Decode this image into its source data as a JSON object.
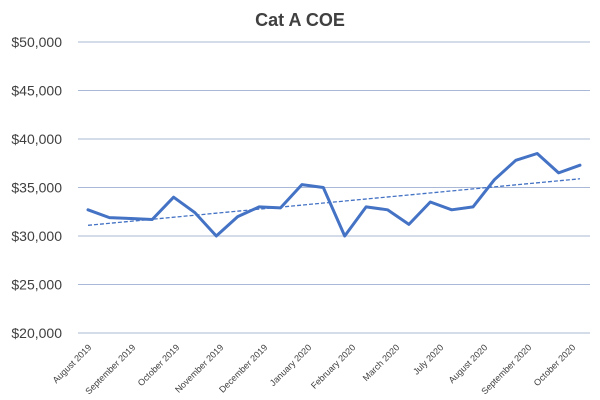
{
  "chart_data": {
    "type": "line",
    "title": "Cat A COE",
    "xlabel": "",
    "ylabel": "",
    "ylim": [
      20000,
      50000
    ],
    "y_ticks": [
      20000,
      25000,
      30000,
      35000,
      40000,
      45000,
      50000
    ],
    "y_tick_labels": [
      "$20,000",
      "$25,000",
      "$30,000",
      "$35,000",
      "$40,000",
      "$45,000",
      "$50,000"
    ],
    "x_tick_labels": [
      "August 2019",
      "September 2019",
      "October 2019",
      "November 2019",
      "December 2019",
      "January 2020",
      "February 2020",
      "March 2020",
      "July 2020",
      "August 2020",
      "September 2020",
      "October 2020"
    ],
    "grid": true,
    "legend": false,
    "series": [
      {
        "color": "#4472c4",
        "values": [
          32700,
          31900,
          31800,
          31700,
          34000,
          32400,
          30000,
          32000,
          33000,
          32900,
          35300,
          35000,
          30000,
          33000,
          32700,
          31200,
          33500,
          32700,
          33000,
          35800,
          37800,
          38500,
          36500,
          37300
        ]
      }
    ],
    "trendline": {
      "style": "dashed",
      "color": "#4472c4",
      "start": 31100,
      "end": 35900
    }
  }
}
